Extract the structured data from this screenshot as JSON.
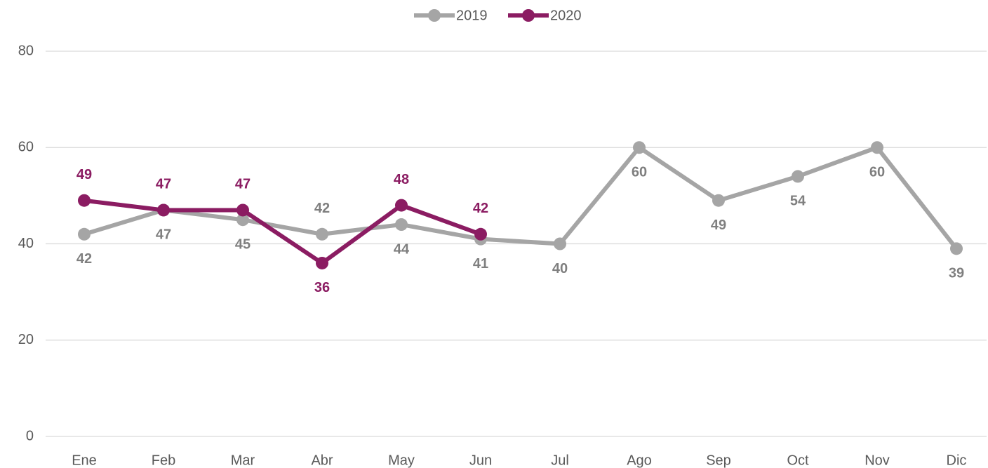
{
  "chart_data": {
    "type": "line",
    "categories": [
      "Ene",
      "Feb",
      "Mar",
      "Abr",
      "May",
      "Jun",
      "Jul",
      "Ago",
      "Sep",
      "Oct",
      "Nov",
      "Dic"
    ],
    "series": [
      {
        "name": "2019",
        "color": "#a5a5a5",
        "values": [
          42,
          47,
          45,
          42,
          44,
          41,
          40,
          60,
          49,
          54,
          60,
          39
        ]
      },
      {
        "name": "2020",
        "color": "#8b1c62",
        "values": [
          49,
          47,
          47,
          36,
          48,
          42,
          null,
          null,
          null,
          null,
          null,
          null
        ]
      }
    ],
    "ylim": [
      0,
      80
    ],
    "yticks": [
      0,
      20,
      40,
      60,
      80
    ],
    "grid": true,
    "legend": "top"
  }
}
